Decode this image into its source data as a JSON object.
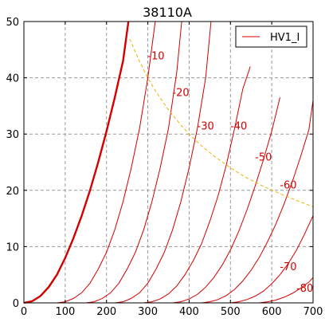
{
  "chart_data": {
    "type": "line",
    "title": "38110A",
    "xlabel": "",
    "ylabel": "",
    "xlim": [
      0,
      700
    ],
    "ylim": [
      0,
      50
    ],
    "x_ticks": [
      0,
      100,
      200,
      300,
      400,
      500,
      600,
      700
    ],
    "y_ticks": [
      0,
      10,
      20,
      30,
      40,
      50
    ],
    "grid": true,
    "legend": {
      "position": "top-right",
      "entries": [
        "HV1_I"
      ]
    },
    "colors": {
      "curve": "#d40000",
      "grid": "#9a9a9a",
      "dissipation": "#f0b000"
    },
    "series": [
      {
        "grid_voltage": "0",
        "bold": true,
        "x": [
          0,
          20,
          40,
          60,
          80,
          100,
          120,
          140,
          160,
          180,
          200,
          220,
          240,
          253
        ],
        "y": [
          0,
          0.3,
          1.2,
          2.8,
          5.0,
          8.0,
          11.5,
          15.5,
          20.0,
          25.0,
          30.5,
          36.5,
          43.0,
          50.0
        ]
      },
      {
        "label": "-10",
        "x": [
          80,
          100,
          120,
          140,
          160,
          180,
          200,
          220,
          240,
          260,
          280,
          300,
          318
        ],
        "y": [
          0,
          0.2,
          0.8,
          1.8,
          3.5,
          6.0,
          9.0,
          13.0,
          18.0,
          24.0,
          31.0,
          40.0,
          50.0
        ]
      },
      {
        "label": "-20",
        "x": [
          150,
          170,
          190,
          210,
          230,
          250,
          270,
          290,
          310,
          330,
          350,
          370,
          382
        ],
        "y": [
          0,
          0.2,
          0.8,
          1.8,
          3.5,
          6.0,
          9.0,
          13.0,
          18.0,
          24.0,
          31.0,
          41.0,
          50.0
        ]
      },
      {
        "label": "-30",
        "x": [
          220,
          240,
          260,
          280,
          300,
          320,
          340,
          360,
          380,
          400,
          420,
          440,
          453
        ],
        "y": [
          0,
          0.2,
          0.8,
          1.8,
          3.5,
          6.0,
          9.0,
          13.0,
          18.0,
          24.0,
          31.0,
          40.0,
          50.0
        ]
      },
      {
        "label": "-40",
        "x": [
          290,
          310,
          330,
          350,
          370,
          390,
          410,
          430,
          450,
          470,
          490,
          510,
          530,
          548
        ],
        "y": [
          0,
          0.2,
          0.7,
          1.6,
          3.0,
          5.0,
          7.5,
          10.5,
          14.5,
          19.0,
          24.5,
          31.0,
          38.0,
          42.0
        ]
      },
      {
        "label": "-50",
        "x": [
          360,
          380,
          400,
          420,
          440,
          460,
          480,
          500,
          520,
          540,
          560,
          580,
          600,
          620
        ],
        "y": [
          0,
          0.2,
          0.7,
          1.5,
          2.8,
          4.5,
          6.7,
          9.4,
          12.7,
          16.5,
          20.8,
          25.5,
          30.5,
          36.5
        ]
      },
      {
        "label": "-60",
        "x": [
          430,
          450,
          470,
          490,
          510,
          530,
          550,
          570,
          590,
          610,
          630,
          650,
          670,
          690,
          700
        ],
        "y": [
          0,
          0.2,
          0.6,
          1.3,
          2.4,
          3.9,
          5.8,
          8.1,
          10.9,
          14.0,
          17.6,
          21.6,
          26.0,
          30.8,
          36.0
        ]
      },
      {
        "label": "-70",
        "x": [
          500,
          520,
          540,
          560,
          580,
          600,
          620,
          640,
          660,
          680,
          700
        ],
        "y": [
          0,
          0.2,
          0.6,
          1.2,
          2.1,
          3.4,
          5.0,
          7.0,
          9.4,
          12.3,
          15.5
        ]
      },
      {
        "label": "-80",
        "x": [
          570,
          590,
          610,
          630,
          650,
          670,
          690,
          700
        ],
        "y": [
          0,
          0.2,
          0.5,
          1.0,
          1.7,
          2.6,
          3.7,
          4.5
        ]
      }
    ],
    "dissipation_curve": {
      "x": [
        256,
        280,
        300,
        320,
        350,
        380,
        400,
        430,
        460,
        500,
        540,
        580,
        620,
        660,
        700
      ],
      "y": [
        46.9,
        42.9,
        40.0,
        37.5,
        34.3,
        31.6,
        30.0,
        27.9,
        26.1,
        24.0,
        22.2,
        20.7,
        19.4,
        18.2,
        17.1
      ]
    },
    "labels": [
      {
        "text": "-10",
        "x": 320,
        "y": 44
      },
      {
        "text": "-20",
        "x": 380,
        "y": 37.5
      },
      {
        "text": "-30",
        "x": 440,
        "y": 31.5
      },
      {
        "text": "-40",
        "x": 520,
        "y": 31.5
      },
      {
        "text": "-50",
        "x": 580,
        "y": 26
      },
      {
        "text": "-60",
        "x": 640,
        "y": 21
      },
      {
        "text": "-70",
        "x": 640,
        "y": 6.5
      },
      {
        "text": "-80",
        "x": 680,
        "y": 2.7
      }
    ]
  }
}
